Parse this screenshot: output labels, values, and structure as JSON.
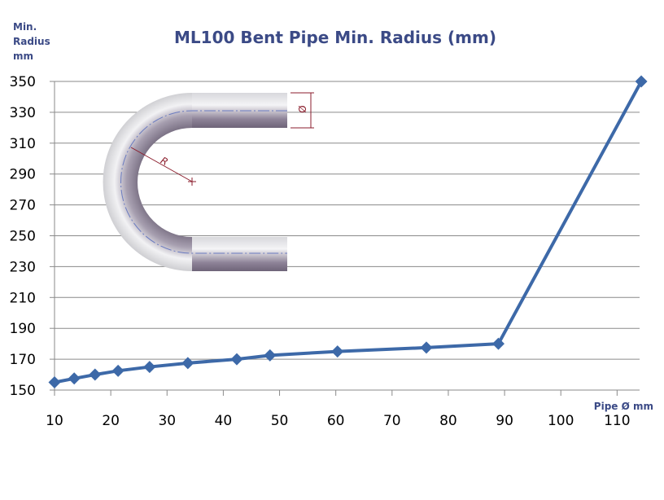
{
  "chart_data": {
    "type": "line",
    "title": "ML100 Bent Pipe Min. Radius (mm)",
    "ylabel_lines": [
      "Min.",
      "Radius",
      "mm"
    ],
    "xlabel": "Pipe Ø mm",
    "ylim": [
      150,
      350
    ],
    "yticks": [
      150,
      170,
      190,
      210,
      230,
      250,
      270,
      290,
      310,
      330,
      350
    ],
    "xlim": [
      10,
      114
    ],
    "xticks": [
      10,
      20,
      30,
      40,
      50,
      60,
      70,
      80,
      90,
      100,
      110
    ],
    "grid": true,
    "series": [
      {
        "name": "Min. Radius",
        "color": "#3d69a8",
        "x": [
          10,
          13.5,
          17.2,
          21.3,
          26.9,
          33.7,
          42.4,
          48.3,
          60.3,
          76.1,
          88.9,
          114.3
        ],
        "y": [
          155,
          157.5,
          160,
          162.5,
          165,
          167.5,
          170,
          172.5,
          175,
          177.5,
          180,
          350
        ]
      }
    ],
    "inset": {
      "description": "pipe bend illustration",
      "label_radius": "R",
      "label_diameter": "Ø"
    }
  }
}
